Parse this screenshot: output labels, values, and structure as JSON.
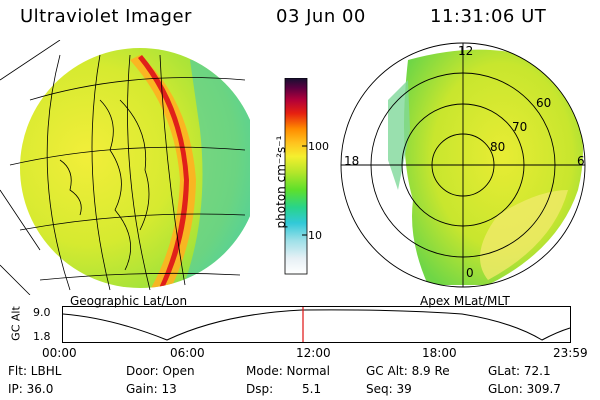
{
  "header": {
    "instrument": "Ultraviolet Imager",
    "date": "03 Jun 00",
    "time": "11:31:06 UT"
  },
  "left_panel": {
    "caption": "Geographic Lat/Lon"
  },
  "right_panel": {
    "caption": "Apex MLat/MLT",
    "mlt_labels": [
      "12",
      "18",
      "6",
      "0"
    ],
    "lat_rings": [
      "60",
      "70",
      "80"
    ]
  },
  "colorbar": {
    "unit": "photon cm⁻²s⁻¹",
    "ticks": [
      "100",
      "10"
    ],
    "colors": [
      "#ffffff",
      "#e6f0f5",
      "#9fe0e8",
      "#31c9d8",
      "#28d48a",
      "#5ee02b",
      "#b6e62a",
      "#f5ef2e",
      "#ffc21e",
      "#ff8c00",
      "#e62010",
      "#b0003a",
      "#5a0040",
      "#151030"
    ]
  },
  "altitude_plot": {
    "axis_label": "GC Alt",
    "y_ticks": [
      "9.0",
      "1.8"
    ],
    "x_ticks": [
      "00:00",
      "06:00",
      "12:00",
      "18:00",
      "23:59"
    ]
  },
  "info": {
    "filter": "Flt: LBHL",
    "ip": "IP: 36.0",
    "door": "Door: Open",
    "gain": "Gain: 13",
    "mode": "Mode: Normal",
    "dsp_label": "Dsp:",
    "dsp_value": "5.1",
    "gc_alt": "GC Alt: 8.9 Re",
    "seq": "Seq: 39",
    "glat": "GLat: 72.1",
    "glon": "GLon: 309.7"
  }
}
